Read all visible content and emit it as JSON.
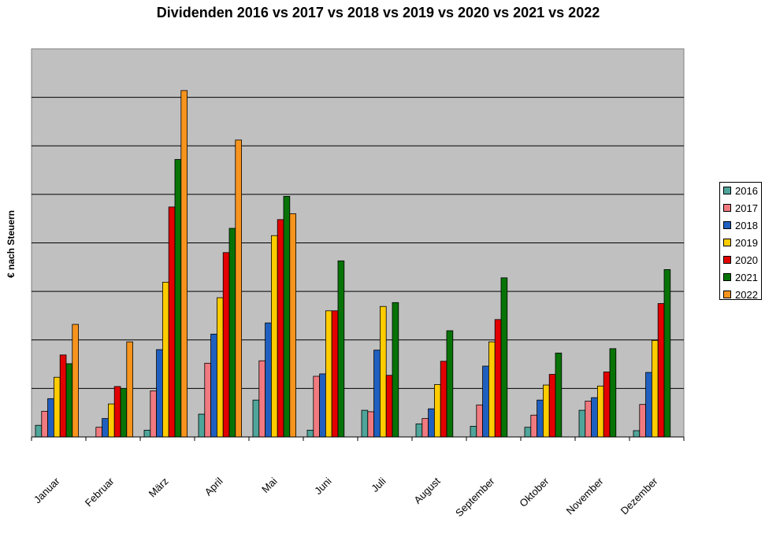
{
  "chart_data": {
    "type": "bar",
    "title": "Dividenden 2016 vs 2017 vs 2018 vs 2019 vs 2020 vs 2021 vs 2022",
    "ylabel": "€ nach Steuern",
    "xlabel": "",
    "ylim": [
      0,
      8
    ],
    "grid": true,
    "legend_position": "right",
    "categories": [
      "Januar",
      "Februar",
      "März",
      "April",
      "Mai",
      "Juni",
      "Juli",
      "August",
      "September",
      "Oktober",
      "November",
      "Dezember"
    ],
    "series": [
      {
        "name": "2016",
        "color": "#4fa59a",
        "values": [
          0.24,
          0.0,
          0.14,
          0.47,
          0.76,
          0.14,
          0.55,
          0.27,
          0.22,
          0.2,
          0.55,
          0.13
        ]
      },
      {
        "name": "2017",
        "color": "#f07a80",
        "values": [
          0.53,
          0.2,
          0.95,
          1.52,
          1.57,
          1.25,
          0.52,
          0.38,
          0.66,
          0.45,
          0.74,
          0.67
        ]
      },
      {
        "name": "2018",
        "color": "#1f5fbf",
        "values": [
          0.79,
          0.38,
          1.8,
          2.12,
          2.35,
          1.3,
          1.79,
          0.58,
          1.46,
          0.76,
          0.81,
          1.33
        ]
      },
      {
        "name": "2019",
        "color": "#ffcc00",
        "values": [
          1.23,
          0.68,
          3.19,
          2.87,
          4.15,
          2.6,
          2.69,
          1.08,
          1.96,
          1.07,
          1.05,
          1.99
        ]
      },
      {
        "name": "2020",
        "color": "#e30000",
        "values": [
          1.69,
          1.04,
          4.74,
          3.8,
          4.48,
          2.6,
          1.27,
          1.56,
          2.42,
          1.29,
          1.34,
          2.75
        ]
      },
      {
        "name": "2021",
        "color": "#077307",
        "values": [
          1.51,
          1.0,
          5.72,
          4.3,
          4.96,
          3.63,
          2.77,
          2.19,
          3.28,
          1.73,
          1.82,
          3.45
        ]
      },
      {
        "name": "2022",
        "color": "#f7941d",
        "values": [
          2.32,
          1.96,
          7.14,
          6.12,
          4.6,
          null,
          null,
          null,
          null,
          null,
          null,
          null
        ]
      }
    ]
  }
}
